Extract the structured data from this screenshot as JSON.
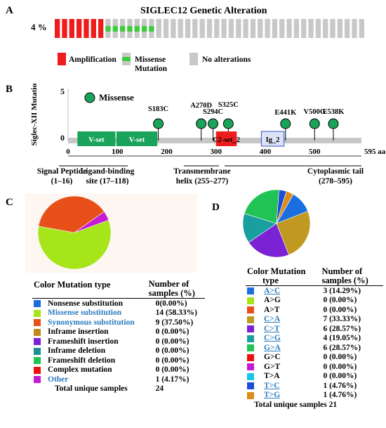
{
  "panelA": {
    "label": "A",
    "title": "SIGLEC12 Genetic Alteration",
    "percent": "4 %",
    "legend": [
      {
        "label": "Amplification",
        "color": "#ee1c1c"
      },
      {
        "label": "Missense Mutation",
        "color": "#3ecc3e"
      },
      {
        "label": "No alterations",
        "color": "#c8c8c8"
      }
    ]
  },
  "panelB": {
    "label": "B",
    "ylabel": "Siglec-XII Mutations",
    "ytick_top": "5",
    "ytick_bottom": "0",
    "legend_label": "Missense",
    "domains": [
      {
        "label": "V-set",
        "start": 19,
        "end": 96,
        "color": "#1aa35a"
      },
      {
        "label": "V-set",
        "start": 98,
        "end": 181,
        "color": "#1aa35a"
      },
      {
        "label": "C2-set_2",
        "start": 300,
        "end": 342,
        "color": "#ee1c1c"
      },
      {
        "label": "Ig_2",
        "start": 392,
        "end": 438,
        "color": "#dbe4f6"
      }
    ],
    "mutations": [
      {
        "label": "S183C",
        "pos": 183
      },
      {
        "label": "A270D",
        "pos": 270
      },
      {
        "label": "S294C",
        "pos": 294
      },
      {
        "label": "S325C",
        "pos": 325
      },
      {
        "label": "E441K",
        "pos": 441
      },
      {
        "label": "V500G",
        "pos": 500
      },
      {
        "label": "E538K",
        "pos": 538
      }
    ],
    "ticks": [
      "0",
      "100",
      "200",
      "300",
      "400",
      "500",
      "595 aa"
    ],
    "regions": [
      {
        "name": "Signal Peptide",
        "range": "(1–16)"
      },
      {
        "name": "Ligand-binding",
        "range": "site (17–118)"
      },
      {
        "name": "Transmembrane",
        "range": "helix (255–277)"
      },
      {
        "name": "Cytoplasmic tail",
        "range": "(278–595)"
      }
    ]
  },
  "panelC": {
    "label": "C",
    "header": {
      "col1": "Color Mutation type",
      "col2a": "Number of",
      "col2b": "samples (%)"
    },
    "rows": [
      {
        "color": "#1a6fe0",
        "type": "Nonsense substitution",
        "value": "0(0.00%)"
      },
      {
        "color": "#a5e51a",
        "type": "Missense substitution",
        "value": "14 (58.33%)"
      },
      {
        "color": "#e8501a",
        "type": "Synonymous substitution",
        "value": "9 (37.50%)"
      },
      {
        "color": "#c08a20",
        "type": "Inframe insertion",
        "value": "0 (0.00%)"
      },
      {
        "color": "#7a22d4",
        "type": "Frameshift insertion",
        "value": "0 (0.00%)"
      },
      {
        "color": "#1a8f8f",
        "type": "Inframe deletion",
        "value": "0 (0.00%)"
      },
      {
        "color": "#22c355",
        "type": "Frameshift deletion",
        "value": "0 (0.00%)"
      },
      {
        "color": "#ee1010",
        "type": "Complex mutation",
        "value": "0 (0.00%)"
      },
      {
        "color": "#c51ad4",
        "type": "Other",
        "value": "1 (4.17%)"
      }
    ],
    "total_label": "Total unique samples",
    "total_value": "24"
  },
  "panelD": {
    "label": "D",
    "header": {
      "col1a": "Color Mutation",
      "col1b": "type",
      "col2a": "Number of",
      "col2b": "samples (%)"
    },
    "rows": [
      {
        "color": "#1a6fe0",
        "type": "A>C",
        "value": "3 (14.29%)"
      },
      {
        "color": "#a5e51a",
        "type": "A>G",
        "value": "0 (0.00%)"
      },
      {
        "color": "#e8501a",
        "type": "A>T",
        "value": "0 (0.00%)"
      },
      {
        "color": "#c09a20",
        "type": "C>A",
        "value": "7 (33.33%)"
      },
      {
        "color": "#7a22d4",
        "type": "C>T",
        "value": "6 (28.57%)"
      },
      {
        "color": "#1a9f9f",
        "type": "C>G",
        "value": "4 (19.05%)"
      },
      {
        "color": "#22c355",
        "type": "G>A",
        "value": "6 (28.57%)"
      },
      {
        "color": "#ee1010",
        "type": "G>C",
        "value": "0 (0.00%)"
      },
      {
        "color": "#c51ad4",
        "type": "G>T",
        "value": "0 (0.00%)"
      },
      {
        "color": "#19c7e6",
        "type": "T>A",
        "value": "0 (0.00%)"
      },
      {
        "color": "#1a4fd6",
        "type": "T>C",
        "value": "1 (4.76%)"
      },
      {
        "color": "#e08a1a",
        "type": "T>G",
        "value": "1 (4.76%)"
      }
    ],
    "total_label": "Total unique samples 21"
  },
  "chart_data": [
    {
      "type": "bar",
      "title": "SIGLEC12 Genetic Alteration",
      "categories": [
        "Amplification",
        "Missense Mutation",
        "No alterations"
      ],
      "values": [
        7,
        7,
        29
      ]
    },
    {
      "type": "scatter",
      "x": [
        183,
        270,
        294,
        325,
        441,
        500,
        538
      ],
      "y": [
        1,
        1,
        1,
        1,
        1,
        1,
        1
      ],
      "xlim": [
        0,
        595
      ],
      "ylim": [
        0,
        5
      ]
    },
    {
      "type": "pie",
      "values": [
        58.33,
        37.5,
        4.17
      ],
      "colors": [
        "#a5e51a",
        "#e8501a",
        "#c51ad4"
      ]
    },
    {
      "type": "pie",
      "values": [
        14.29,
        33.33,
        28.57,
        19.05,
        28.57,
        4.76,
        4.76
      ],
      "colors": [
        "#1a6fe0",
        "#c09a20",
        "#7a22d4",
        "#1a9f9f",
        "#22c355",
        "#1a4fd6",
        "#e08a1a"
      ]
    }
  ]
}
